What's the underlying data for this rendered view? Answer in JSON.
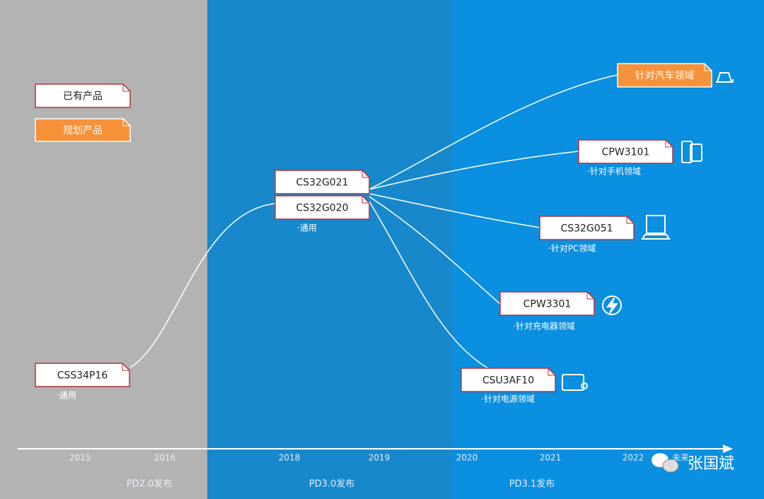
{
  "legend": {
    "existing": "已有产品",
    "planned": "规划产品"
  },
  "nodes": [
    {
      "label": "CSS34P16",
      "note": "·通用"
    },
    {
      "label": "CS32G021"
    },
    {
      "label": "CS32G020",
      "note": "·通用"
    },
    {
      "label": "针对汽车领域"
    },
    {
      "label": "CPW3101",
      "note": "·针对手机领域"
    },
    {
      "label": "CS32G051",
      "note": "·针对PC领域"
    },
    {
      "label": "CPW3301",
      "note": "·针对充电器领域"
    },
    {
      "label": "CSU3AF10",
      "note": "·针对电源领域"
    }
  ],
  "timeline": {
    "years": [
      "2015",
      "2016",
      "2018",
      "2019",
      "2020",
      "2021",
      "2022",
      "未来"
    ],
    "eras": [
      "PD2.0发布",
      "PD3.0发布",
      "PD3.1发布"
    ]
  },
  "watermark": "张国斌"
}
